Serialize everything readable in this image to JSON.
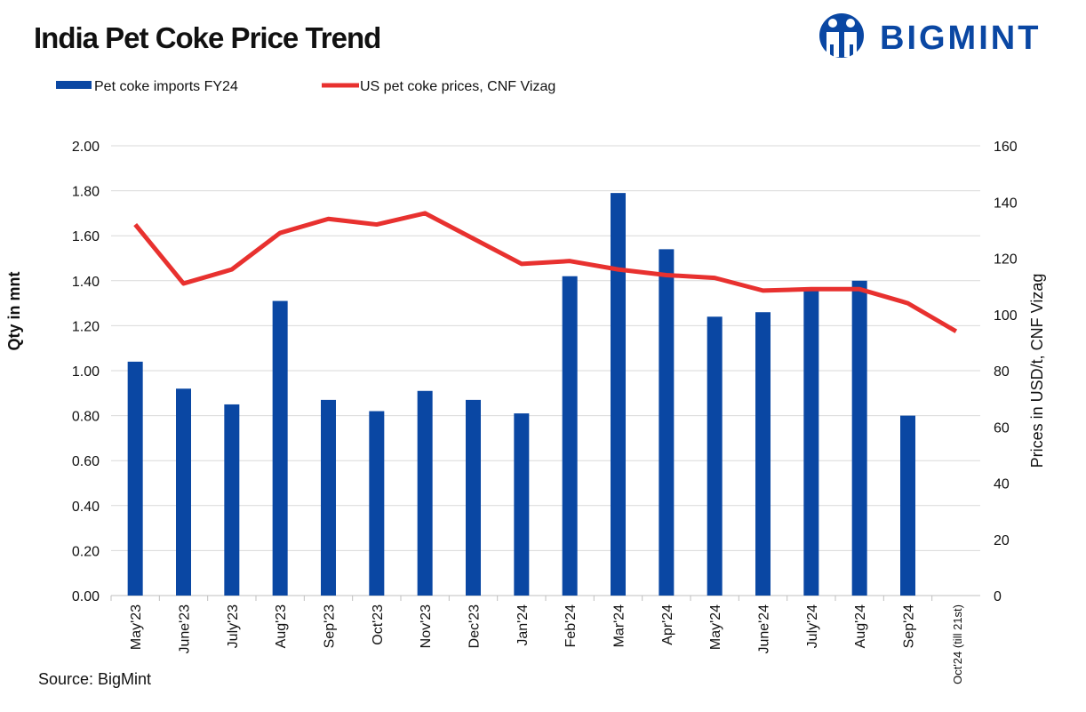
{
  "logo": "BIGMINT",
  "chart_data": {
    "type": "bar-line",
    "title": "India Pet Coke Price Trend",
    "source": "Source: BigMint",
    "categories": [
      "May'23",
      "June'23",
      "July'23",
      "Aug'23",
      "Sep'23",
      "Oct'23",
      "Nov'23",
      "Dec'23",
      "Jan'24",
      "Feb'24",
      "Mar'24",
      "Apr'24",
      "May'24",
      "June'24",
      "July'24",
      "Aug'24",
      "Sep'24",
      "Oct'24 (till 21st)"
    ],
    "series": [
      {
        "name": "Pet coke imports FY24",
        "type": "bar",
        "color": "#0a47a3",
        "values": [
          1.04,
          0.92,
          0.85,
          1.31,
          0.87,
          0.82,
          0.91,
          0.87,
          0.81,
          1.42,
          1.79,
          1.54,
          1.24,
          1.26,
          1.37,
          1.4,
          0.8,
          null
        ]
      },
      {
        "name": "US pet coke prices, CNF Vizag",
        "type": "line",
        "axis": "y2",
        "color": "#e8312f",
        "values": [
          132,
          111,
          116,
          129,
          134,
          132,
          136,
          127,
          118,
          119,
          116,
          114,
          113,
          108.5,
          109,
          109,
          104,
          94
        ]
      }
    ],
    "ylabel": "Qty in mnt",
    "y2label": "Prices in USD/t, CNF Vizag",
    "ylim": [
      0,
      2
    ],
    "yticks": [
      {
        "value": 0,
        "label": "0.00"
      },
      {
        "value": 0.2,
        "label": "0.20"
      },
      {
        "value": 0.4,
        "label": "0.40"
      },
      {
        "value": 0.6,
        "label": "0.60"
      },
      {
        "value": 0.8,
        "label": "0.80"
      },
      {
        "value": 1,
        "label": "1.00"
      },
      {
        "value": 1.2,
        "label": "1.20"
      },
      {
        "value": 1.4,
        "label": "1.40"
      },
      {
        "value": 1.6,
        "label": "1.60"
      },
      {
        "value": 1.8,
        "label": "1.80"
      },
      {
        "value": 2,
        "label": "2.00"
      }
    ],
    "y2lim": [
      0,
      160
    ],
    "y2ticks": [
      0,
      20,
      40,
      60,
      80,
      100,
      120,
      140,
      160
    ],
    "grid": true,
    "legend": "top-left"
  }
}
